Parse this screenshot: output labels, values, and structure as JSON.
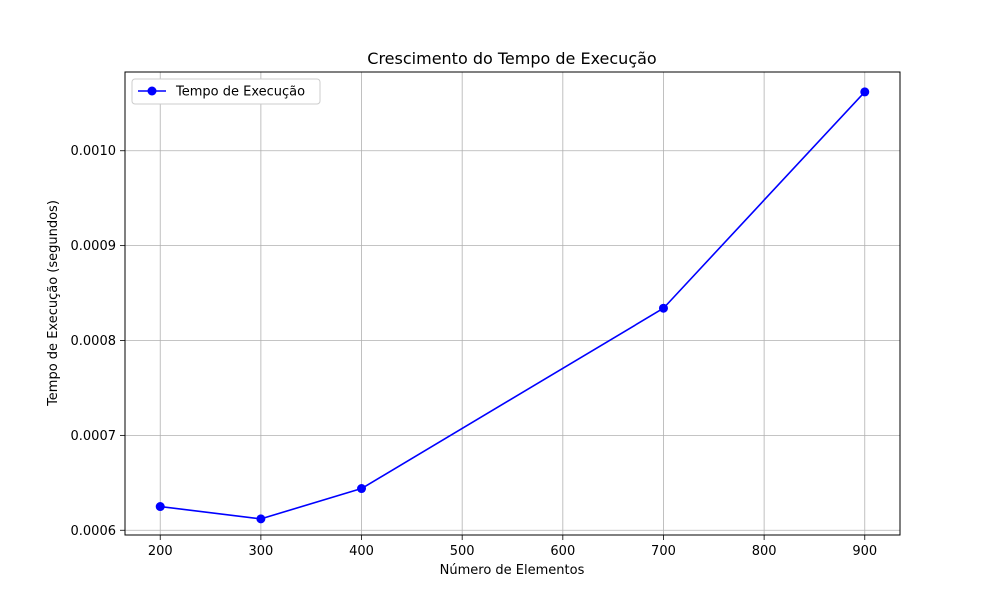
{
  "chart_data": {
    "type": "line",
    "title": "Crescimento do Tempo de Execução",
    "xlabel": "Número de Elementos",
    "ylabel": "Tempo de Execução (segundos)",
    "x": [
      200,
      300,
      400,
      700,
      900
    ],
    "series": [
      {
        "name": "Tempo de Execução",
        "color": "#0000ff",
        "marker": "circle",
        "values": [
          0.000625,
          0.000612,
          0.000644,
          0.000834,
          0.001062
        ]
      }
    ],
    "xlim": [
      165,
      935
    ],
    "ylim": [
      0.000595,
      0.001083
    ],
    "xticks": [
      200,
      300,
      400,
      500,
      600,
      700,
      800,
      900
    ],
    "xtick_labels": [
      "200",
      "300",
      "400",
      "500",
      "600",
      "700",
      "800",
      "900"
    ],
    "yticks": [
      0.0006,
      0.0007,
      0.0008,
      0.0009,
      0.001
    ],
    "ytick_labels": [
      "0.0006",
      "0.0007",
      "0.0008",
      "0.0009",
      "0.0010"
    ],
    "grid": true,
    "legend_position": "top-left"
  }
}
